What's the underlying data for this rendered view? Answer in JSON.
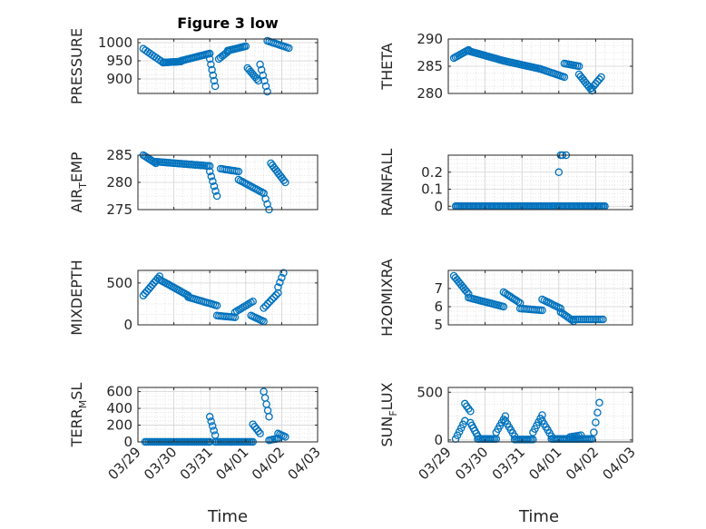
{
  "figure": {
    "title": "Figure 3 low",
    "xlabel": "Time",
    "xticks": [
      "03/29",
      "03/30",
      "03/31",
      "04/01",
      "04/02",
      "04/03"
    ],
    "marker_color": "#0072BD"
  },
  "chart_data": [
    {
      "type": "scatter",
      "title": "Figure 3 low",
      "ylabel": "PRESSURE",
      "xlim": [
        0,
        5
      ],
      "ylim": [
        860,
        1010
      ],
      "yticks": [
        900,
        950,
        1000
      ],
      "grid": true,
      "marker": "circle",
      "segments": [
        {
          "x": [
            0.15,
            0.7
          ],
          "y": [
            983,
            945
          ],
          "n": 10
        },
        {
          "x": [
            0.7,
            1.2
          ],
          "y": [
            945,
            948
          ],
          "n": 14
        },
        {
          "x": [
            1.2,
            2.0
          ],
          "y": [
            950,
            970
          ],
          "n": 20
        },
        {
          "x": [
            2.0,
            2.15
          ],
          "y": [
            955,
            880
          ],
          "n": 6
        },
        {
          "x": [
            2.25,
            2.5
          ],
          "y": [
            955,
            975
          ],
          "n": 6
        },
        {
          "x": [
            2.5,
            3.0
          ],
          "y": [
            978,
            990
          ],
          "n": 12
        },
        {
          "x": [
            3.05,
            3.35
          ],
          "y": [
            930,
            895
          ],
          "n": 8
        },
        {
          "x": [
            3.4,
            3.6
          ],
          "y": [
            940,
            865
          ],
          "n": 6
        },
        {
          "x": [
            3.6,
            4.2
          ],
          "y": [
            1005,
            985
          ],
          "n": 12
        }
      ]
    },
    {
      "type": "scatter",
      "ylabel": "THETA",
      "xlim": [
        0,
        5
      ],
      "ylim": [
        280,
        290
      ],
      "yticks": [
        280,
        285,
        290
      ],
      "grid": true,
      "marker": "circle",
      "segments": [
        {
          "x": [
            0.15,
            0.55
          ],
          "y": [
            286.5,
            288.0
          ],
          "n": 10
        },
        {
          "x": [
            0.55,
            1.5
          ],
          "y": [
            287.8,
            286.0
          ],
          "n": 22
        },
        {
          "x": [
            1.5,
            2.5
          ],
          "y": [
            286.0,
            284.5
          ],
          "n": 22
        },
        {
          "x": [
            2.5,
            3.15
          ],
          "y": [
            284.5,
            283.0
          ],
          "n": 14
        },
        {
          "x": [
            3.15,
            3.55
          ],
          "y": [
            285.5,
            285.0
          ],
          "n": 9
        },
        {
          "x": [
            3.55,
            3.9
          ],
          "y": [
            283.5,
            280.5
          ],
          "n": 9
        },
        {
          "x": [
            3.9,
            4.15
          ],
          "y": [
            281.0,
            283.0
          ],
          "n": 6
        }
      ]
    },
    {
      "type": "scatter",
      "ylabel": "AIR_TEMP",
      "xlim": [
        0,
        5
      ],
      "ylim": [
        275,
        285
      ],
      "yticks": [
        275,
        280,
        285
      ],
      "grid": true,
      "marker": "circle",
      "segments": [
        {
          "x": [
            0.15,
            0.5
          ],
          "y": [
            285.0,
            283.5
          ],
          "n": 9
        },
        {
          "x": [
            0.5,
            2.0
          ],
          "y": [
            283.8,
            283.0
          ],
          "n": 30
        },
        {
          "x": [
            2.0,
            2.2
          ],
          "y": [
            282.0,
            277.5
          ],
          "n": 6
        },
        {
          "x": [
            2.3,
            2.8
          ],
          "y": [
            282.5,
            282.0
          ],
          "n": 10
        },
        {
          "x": [
            2.8,
            3.5
          ],
          "y": [
            280.5,
            278.0
          ],
          "n": 14
        },
        {
          "x": [
            3.5,
            3.65
          ],
          "y": [
            278.0,
            275.0
          ],
          "n": 4
        },
        {
          "x": [
            3.7,
            4.1
          ],
          "y": [
            283.5,
            280.0
          ],
          "n": 10
        }
      ]
    },
    {
      "type": "scatter",
      "ylabel": "RAINFALL",
      "xlim": [
        0,
        5
      ],
      "ylim": [
        -0.02,
        0.3
      ],
      "yticks": [
        0,
        0.1,
        0.2
      ],
      "grid": true,
      "marker": "circle",
      "segments": [
        {
          "x": [
            0.2,
            4.25
          ],
          "y": [
            0,
            0
          ],
          "n": 100
        },
        {
          "x": [
            3.0,
            3.0
          ],
          "y": [
            0.2,
            0.2
          ],
          "n": 1
        },
        {
          "x": [
            3.05,
            3.1
          ],
          "y": [
            0.3,
            0.3
          ],
          "n": 2
        },
        {
          "x": [
            3.2,
            3.2
          ],
          "y": [
            0.3,
            0.3
          ],
          "n": 1
        }
      ]
    },
    {
      "type": "scatter",
      "ylabel": "MIXDEPTH",
      "xlim": [
        0,
        5
      ],
      "ylim": [
        0,
        650
      ],
      "yticks": [
        0,
        500
      ],
      "grid": true,
      "marker": "circle",
      "segments": [
        {
          "x": [
            0.15,
            0.6
          ],
          "y": [
            350,
            580
          ],
          "n": 10
        },
        {
          "x": [
            0.6,
            1.4
          ],
          "y": [
            540,
            350
          ],
          "n": 18
        },
        {
          "x": [
            1.4,
            2.2
          ],
          "y": [
            330,
            230
          ],
          "n": 16
        },
        {
          "x": [
            2.2,
            2.7
          ],
          "y": [
            110,
            90
          ],
          "n": 10
        },
        {
          "x": [
            2.7,
            3.2
          ],
          "y": [
            150,
            280
          ],
          "n": 10
        },
        {
          "x": [
            3.15,
            3.5
          ],
          "y": [
            110,
            40
          ],
          "n": 8
        },
        {
          "x": [
            3.5,
            3.9
          ],
          "y": [
            200,
            380
          ],
          "n": 8
        },
        {
          "x": [
            3.9,
            4.05
          ],
          "y": [
            450,
            620
          ],
          "n": 4
        }
      ]
    },
    {
      "type": "scatter",
      "ylabel": "H2OMIXRA",
      "xlim": [
        0,
        5
      ],
      "ylim": [
        5,
        8
      ],
      "yticks": [
        5,
        6,
        7
      ],
      "grid": true,
      "marker": "circle",
      "segments": [
        {
          "x": [
            0.15,
            0.55
          ],
          "y": [
            7.7,
            6.7
          ],
          "n": 10
        },
        {
          "x": [
            0.55,
            1.5
          ],
          "y": [
            6.5,
            6.0
          ],
          "n": 20
        },
        {
          "x": [
            1.5,
            1.95
          ],
          "y": [
            6.8,
            6.2
          ],
          "n": 10
        },
        {
          "x": [
            1.95,
            2.55
          ],
          "y": [
            5.9,
            5.8
          ],
          "n": 12
        },
        {
          "x": [
            2.55,
            3.05
          ],
          "y": [
            6.4,
            5.9
          ],
          "n": 10
        },
        {
          "x": [
            3.05,
            3.4
          ],
          "y": [
            5.7,
            5.2
          ],
          "n": 8
        },
        {
          "x": [
            3.4,
            4.2
          ],
          "y": [
            5.3,
            5.3
          ],
          "n": 16
        }
      ]
    },
    {
      "type": "scatter",
      "ylabel": "TERR_MSL",
      "xlim": [
        0,
        5
      ],
      "ylim": [
        0,
        650
      ],
      "yticks": [
        0,
        200,
        400,
        600
      ],
      "grid": true,
      "marker": "circle",
      "segments": [
        {
          "x": [
            0.2,
            2.0
          ],
          "y": [
            0,
            0
          ],
          "n": 40
        },
        {
          "x": [
            2.0,
            2.15
          ],
          "y": [
            300,
            80
          ],
          "n": 5
        },
        {
          "x": [
            2.15,
            3.2
          ],
          "y": [
            0,
            0
          ],
          "n": 24
        },
        {
          "x": [
            3.2,
            3.4
          ],
          "y": [
            210,
            100
          ],
          "n": 5
        },
        {
          "x": [
            3.5,
            3.65
          ],
          "y": [
            600,
            300
          ],
          "n": 5
        },
        {
          "x": [
            3.65,
            3.9
          ],
          "y": [
            20,
            40
          ],
          "n": 6
        },
        {
          "x": [
            3.9,
            4.1
          ],
          "y": [
            100,
            60
          ],
          "n": 5
        }
      ]
    },
    {
      "type": "scatter",
      "ylabel": "SUN_FLUX",
      "xlim": [
        0,
        5
      ],
      "ylim": [
        -20,
        550
      ],
      "yticks": [
        0,
        500
      ],
      "grid": true,
      "marker": "circle",
      "segments": [
        {
          "x": [
            0.2,
            0.45
          ],
          "y": [
            10,
            200
          ],
          "n": 6
        },
        {
          "x": [
            0.45,
            0.6
          ],
          "y": [
            380,
            300
          ],
          "n": 4
        },
        {
          "x": [
            0.6,
            0.8
          ],
          "y": [
            180,
            40
          ],
          "n": 6
        },
        {
          "x": [
            0.8,
            1.3
          ],
          "y": [
            10,
            10
          ],
          "n": 12
        },
        {
          "x": [
            1.3,
            1.55
          ],
          "y": [
            80,
            250
          ],
          "n": 6
        },
        {
          "x": [
            1.55,
            1.8
          ],
          "y": [
            200,
            40
          ],
          "n": 6
        },
        {
          "x": [
            1.8,
            2.3
          ],
          "y": [
            5,
            5
          ],
          "n": 12
        },
        {
          "x": [
            2.3,
            2.55
          ],
          "y": [
            80,
            260
          ],
          "n": 6
        },
        {
          "x": [
            2.55,
            2.8
          ],
          "y": [
            200,
            40
          ],
          "n": 6
        },
        {
          "x": [
            2.8,
            3.9
          ],
          "y": [
            10,
            10
          ],
          "n": 26
        },
        {
          "x": [
            3.3,
            3.6
          ],
          "y": [
            30,
            50
          ],
          "n": 6
        },
        {
          "x": [
            3.95,
            4.1
          ],
          "y": [
            80,
            390
          ],
          "n": 4
        }
      ]
    }
  ]
}
